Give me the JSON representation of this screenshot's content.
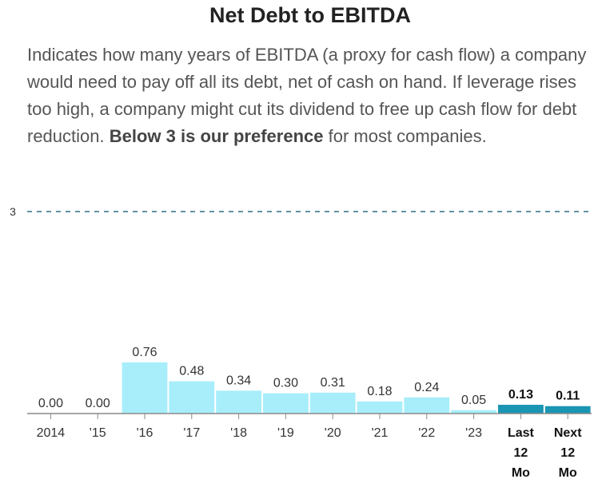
{
  "chart_data": {
    "type": "bar",
    "title": "Net Debt to EBITDA",
    "description": {
      "part1": "Indicates how many years of EBITDA (a proxy for cash flow) a company would need to pay off all its debt, net of cash on hand. If leverage rises too high, a company might cut its dividend to free up cash flow for debt reduction. ",
      "emphasis": "Below 3 is our preference",
      "part2": " for most companies."
    },
    "categories": [
      "2014",
      "'15",
      "'16",
      "'17",
      "'18",
      "'19",
      "'20",
      "'21",
      "'22",
      "'23",
      "Last 12 Mo",
      "Next 12 Mo"
    ],
    "category_lines": [
      [
        "2014"
      ],
      [
        "'15"
      ],
      [
        "'16"
      ],
      [
        "'17"
      ],
      [
        "'18"
      ],
      [
        "'19"
      ],
      [
        "'20"
      ],
      [
        "'21"
      ],
      [
        "'22"
      ],
      [
        "'23"
      ],
      [
        "Last",
        "12",
        "Mo"
      ],
      [
        "Next",
        "12",
        "Mo"
      ]
    ],
    "values": [
      0.0,
      0.0,
      0.76,
      0.48,
      0.34,
      0.3,
      0.31,
      0.18,
      0.24,
      0.05,
      0.13,
      0.11
    ],
    "value_labels": [
      "0.00",
      "0.00",
      "0.76",
      "0.48",
      "0.34",
      "0.30",
      "0.31",
      "0.18",
      "0.24",
      "0.05",
      "0.13",
      "0.11"
    ],
    "highlighted": [
      false,
      false,
      false,
      false,
      false,
      false,
      false,
      false,
      false,
      false,
      true,
      true
    ],
    "reference_line": {
      "value": 3,
      "label": "3"
    },
    "ylim": [
      0,
      3
    ],
    "colors": {
      "bar": "#a8eefa",
      "highlight": "#1a95b3",
      "reference": "#2d6e87",
      "axis": "#8a8a8a"
    },
    "xlabel": "",
    "ylabel": "",
    "grid": false
  }
}
